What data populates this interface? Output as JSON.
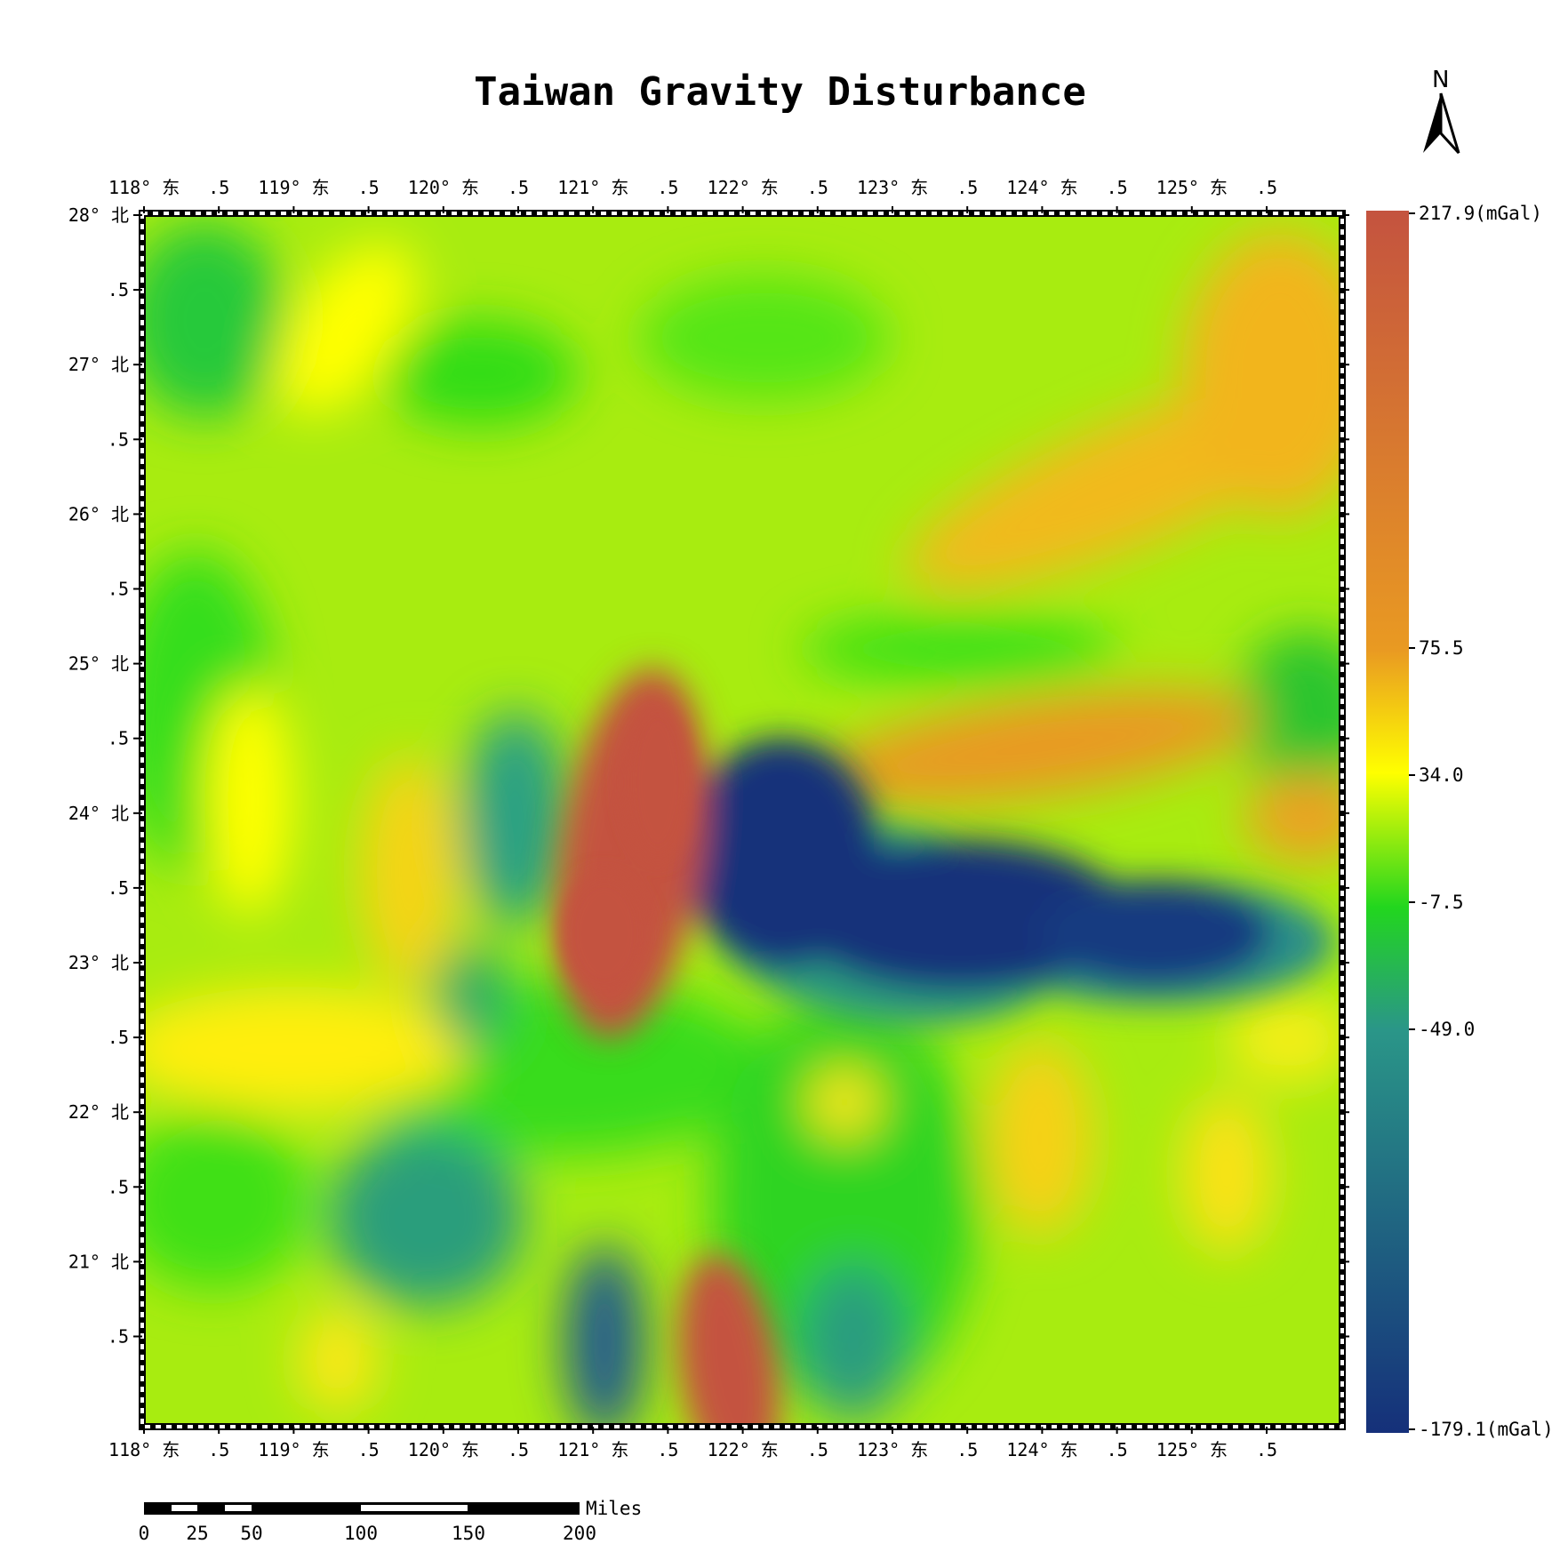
{
  "title": "Taiwan Gravity Disturbance",
  "north_arrow": {
    "label": "N"
  },
  "axes": {
    "top_labels": [
      "118° 东",
      ".5",
      "119° 东",
      ".5",
      "120° 东",
      ".5",
      "121° 东",
      ".5",
      "122° 东",
      ".5",
      "123° 东",
      ".5",
      "124° 东",
      ".5",
      "125° 东",
      ".5"
    ],
    "bottom_labels": [
      "118° 东",
      ".5",
      "119° 东",
      ".5",
      "120° 东",
      ".5",
      "121° 东",
      ".5",
      "122° 东",
      ".5",
      "123° 东",
      ".5",
      "124° 东",
      ".5",
      "125° 东",
      ".5"
    ],
    "left_labels": [
      "28° 北",
      ".5",
      "27° 北",
      ".5",
      "26° 北",
      ".5",
      "25° 北",
      ".5",
      "24° 北",
      ".5",
      "23° 北",
      ".5",
      "22° 北",
      ".5",
      "21° 北",
      ".5"
    ]
  },
  "colorbar": {
    "labels": [
      "217.9(mGal)",
      "75.5",
      "34.0",
      "-7.5",
      "-49.0",
      "-179.1(mGal)"
    ],
    "stops": [
      {
        "value": 217.9,
        "color": "#c4533f"
      },
      {
        "value": 75.5,
        "color": "#e99a22"
      },
      {
        "value": 34.0,
        "color": "#ffff00"
      },
      {
        "value": -7.5,
        "color": "#22d61e"
      },
      {
        "value": -49.0,
        "color": "#2a9688"
      },
      {
        "value": -179.1,
        "color": "#15307a"
      }
    ]
  },
  "scale_bar": {
    "unit": "Miles",
    "labels": [
      "0",
      "25",
      "50",
      "100",
      "150",
      "200"
    ]
  },
  "anomalies": [
    {
      "lon": 121.0,
      "lat": 23.8,
      "value": 217.9,
      "color": "#c4533f"
    },
    {
      "lon": 122.8,
      "lat": 23.6,
      "value": -179.1,
      "color": "#15307a"
    },
    {
      "lon": 121.9,
      "lat": 20.7,
      "value": 200,
      "color": "#c4533f"
    },
    {
      "lon": 121.0,
      "lat": 20.8,
      "value": -120,
      "color": "#1e4f8a"
    }
  ]
}
